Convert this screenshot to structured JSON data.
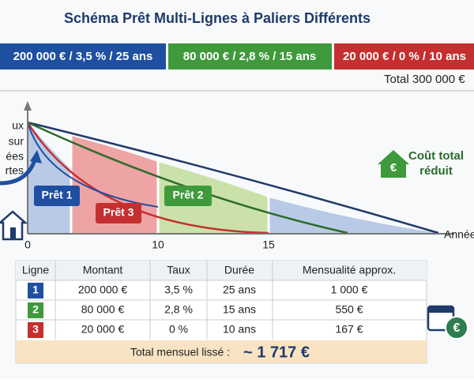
{
  "header": {
    "title": "Schéma Prêt Multi-Lignes à Paliers Différents"
  },
  "banners": [
    "200 000 € / 3,5 % / 25 ans",
    "80 000 € / 2,8 % / 15 ans",
    "20 000 € / 0 % / 10 ans"
  ],
  "total": "Total 300 000 €",
  "side_text": [
    "ux",
    "sur",
    "ées",
    "rtes"
  ],
  "diagram": {
    "labels": [
      "Prêt 1",
      "Prêt 2",
      "Prêt 3"
    ],
    "x_ticks": [
      "0",
      "10",
      "15"
    ],
    "x_label": "Année",
    "callout": [
      "Coût total",
      "réduit"
    ]
  },
  "table": {
    "columns": [
      "Ligne",
      "Montant",
      "Taux",
      "Durée",
      "Mensualité approx."
    ],
    "rows": [
      [
        "1",
        "200 000 €",
        "3,5 %",
        "25 ans",
        "1 000 €"
      ],
      [
        "2",
        "80 000 €",
        "2,8 %",
        "15 ans",
        "550 €"
      ],
      [
        "3",
        "20 000 €",
        "0 %",
        "10 ans",
        "167 €"
      ]
    ],
    "footer": {
      "label": "Total mensuel lissé :",
      "value": "~ 1 717 €"
    }
  }
}
